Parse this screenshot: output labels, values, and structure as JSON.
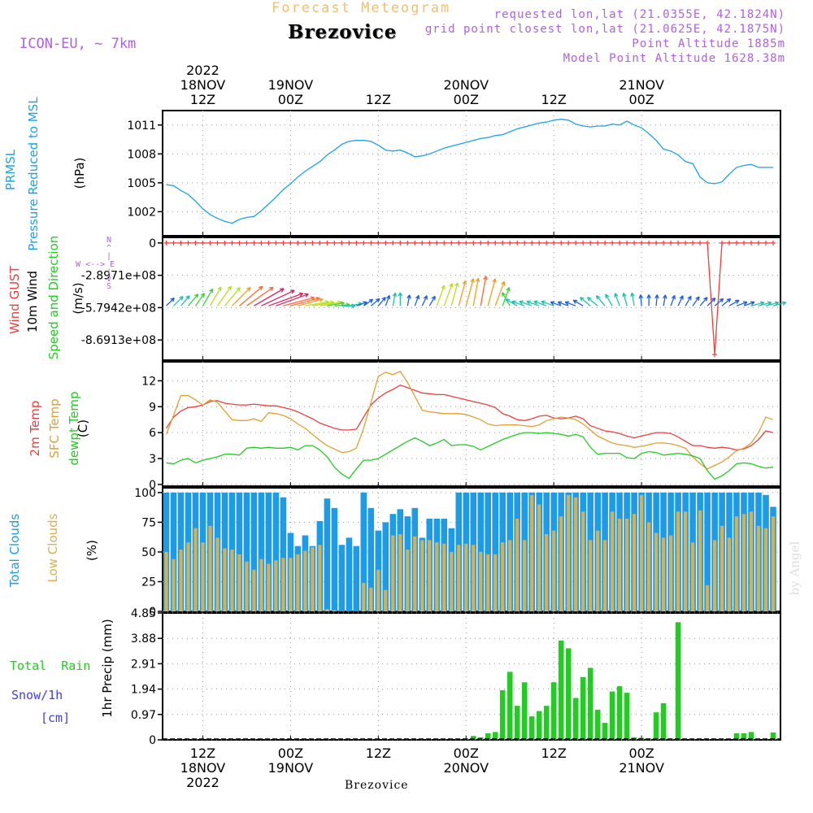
{
  "header": {
    "product": "Forecast Meteogram",
    "model": "ICON-EU, ~ 7km",
    "location": "Brezovice",
    "requested": "requested lon,lat (21.0355E, 42.1824N)",
    "grid_point": "grid point closest lon,lat (21.0625E, 42.1875N)",
    "point_altitude": "Point Altitude 1885m",
    "model_altitude": "Model Point Altitude 1628.38m",
    "credit": "by Angel",
    "footer": "Brezovice"
  },
  "time_axis": {
    "top_labels": [
      {
        "t": 12,
        "lines": [
          "2022",
          "18NOV",
          "12Z"
        ]
      },
      {
        "t": 24,
        "lines": [
          "19NOV",
          "00Z"
        ]
      },
      {
        "t": 36,
        "lines": [
          "12Z"
        ]
      },
      {
        "t": 48,
        "lines": [
          "20NOV",
          "00Z"
        ]
      },
      {
        "t": 60,
        "lines": [
          "12Z"
        ]
      },
      {
        "t": 72,
        "lines": [
          "21NOV",
          "00Z"
        ]
      }
    ],
    "bottom_labels": [
      {
        "t": 12,
        "lines": [
          "12Z",
          "18NOV",
          "2022"
        ]
      },
      {
        "t": 24,
        "lines": [
          "00Z",
          "19NOV"
        ]
      },
      {
        "t": 36,
        "lines": [
          "12Z"
        ]
      },
      {
        "t": 48,
        "lines": [
          "00Z",
          "20NOV"
        ]
      },
      {
        "t": 60,
        "lines": [
          "12Z"
        ]
      },
      {
        "t": 72,
        "lines": [
          "00Z",
          "21NOV"
        ]
      }
    ]
  },
  "colors": {
    "pressure": "#1aa3e6",
    "temp2m": "#e84040",
    "sfc": "#e0a030",
    "dew": "#22cc22",
    "cloud_total": "#1e9be6",
    "cloud_low": "#d8b050",
    "precip": "#22cc22",
    "label_purple": "#b060e0",
    "snow_blue": "#4040e0",
    "title_orange": "#f0c070"
  },
  "chart_data": [
    {
      "type": "line",
      "title": "PRMSL Pressure Reduced to MSL",
      "ylabel_lines": [
        "PRMSL",
        "Pressure Reduced to MSL",
        "(hPa)"
      ],
      "x_start_hours": 7,
      "x_step_hours": 1,
      "ylim": [
        999.5,
        1012.5
      ],
      "yticks": [
        "1002",
        "1005",
        "1008",
        "1011"
      ],
      "values": [
        1004.8,
        1004.7,
        1004.2,
        1003.8,
        1003.1,
        1002.3,
        1001.7,
        1001.3,
        1001.0,
        1000.8,
        1001.2,
        1001.4,
        1001.5,
        1002.1,
        1002.8,
        1003.5,
        1004.3,
        1004.9,
        1005.6,
        1006.2,
        1006.7,
        1007.2,
        1007.9,
        1008.4,
        1009.0,
        1009.3,
        1009.4,
        1009.4,
        1009.3,
        1008.9,
        1008.4,
        1008.3,
        1008.4,
        1008.1,
        1007.7,
        1007.8,
        1008.0,
        1008.3,
        1008.6,
        1008.8,
        1009.0,
        1009.2,
        1009.4,
        1009.6,
        1009.7,
        1009.9,
        1010.0,
        1010.3,
        1010.6,
        1010.8,
        1011.0,
        1011.2,
        1011.3,
        1011.5,
        1011.6,
        1011.5,
        1011.1,
        1010.9,
        1010.8,
        1010.9,
        1010.9,
        1011.1,
        1011.0,
        1011.4,
        1011.0,
        1010.7,
        1010.1,
        1009.4,
        1008.5,
        1008.3,
        1007.9,
        1007.2,
        1007.0,
        1005.6,
        1005.0,
        1004.9,
        1005.1,
        1005.9,
        1006.6,
        1006.8,
        1006.9,
        1006.6,
        1006.6,
        1006.6
      ]
    },
    {
      "type": "line",
      "title": "Wind GUST / 10m Wind Speed and Direction",
      "ylabel_lines": [
        "Wind GUST",
        "10m Wind",
        "Speed and Direction",
        "(m/s)"
      ],
      "compass_lines": [
        "N",
        "^",
        "|",
        "W <--> E",
        "|",
        "v",
        "S"
      ],
      "x_start_hours": 7,
      "x_step_hours": 1,
      "ylim": [
        -1050000000.0,
        50000000.0
      ],
      "yticks": [
        "0",
        "-2.8971e+08",
        "-5.7942e+08",
        "-8.6913e+08"
      ],
      "gust_values": [
        0,
        0,
        0,
        0,
        0,
        0,
        0,
        0,
        0,
        0,
        0,
        0,
        0,
        0,
        0,
        0,
        0,
        0,
        0,
        0,
        0,
        0,
        0,
        0,
        0,
        0,
        0,
        0,
        0,
        0,
        0,
        0,
        0,
        0,
        0,
        0,
        0,
        0,
        0,
        0,
        0,
        0,
        0,
        0,
        0,
        0,
        0,
        0,
        0,
        0,
        0,
        0,
        0,
        0,
        0,
        0,
        0,
        0,
        0,
        0,
        0,
        0,
        0,
        0,
        0,
        0,
        0,
        0,
        0,
        0,
        0,
        0,
        0,
        0,
        0,
        -1000000000.0,
        0,
        0,
        0,
        0,
        0,
        0,
        0,
        0
      ],
      "wind_speed": [
        3,
        4,
        4,
        5,
        5,
        7,
        8,
        9,
        9,
        10,
        12,
        13,
        14,
        15,
        15,
        14,
        13,
        12,
        10,
        9,
        8,
        8,
        6,
        5,
        4,
        4,
        3,
        3,
        3,
        3,
        3,
        4,
        4,
        3,
        3,
        3,
        3,
        8,
        9,
        9,
        10,
        11,
        11,
        12,
        11,
        10,
        7,
        5,
        4,
        4,
        4,
        4,
        4,
        4,
        3,
        3,
        3,
        3,
        4,
        4,
        4,
        4,
        4,
        4,
        4,
        3,
        3,
        3,
        3,
        3,
        3,
        3,
        3,
        3,
        3,
        3,
        3,
        3,
        3,
        3,
        4,
        4,
        4,
        4
      ],
      "wind_dir_deg": [
        225,
        225,
        220,
        220,
        215,
        210,
        210,
        215,
        220,
        225,
        230,
        235,
        240,
        245,
        250,
        250,
        255,
        255,
        255,
        260,
        260,
        260,
        260,
        265,
        270,
        260,
        250,
        235,
        230,
        220,
        200,
        190,
        180,
        190,
        200,
        205,
        210,
        200,
        200,
        195,
        195,
        195,
        190,
        190,
        195,
        200,
        200,
        150,
        120,
        110,
        110,
        110,
        110,
        110,
        110,
        110,
        110,
        120,
        130,
        130,
        140,
        150,
        160,
        165,
        170,
        175,
        180,
        185,
        190,
        200,
        205,
        210,
        215,
        220,
        225,
        230,
        230,
        240,
        250,
        250,
        255,
        255,
        255,
        255
      ]
    },
    {
      "type": "line",
      "title": "2m Temp / SFC Temp / dewpt Temp",
      "ylabel_lines": [
        "2m Temp",
        "SFC Temp",
        "dewpt Temp",
        "(C)"
      ],
      "x_start_hours": 7,
      "x_step_hours": 1,
      "ylim": [
        -0.2,
        14.2
      ],
      "yticks": [
        "0",
        "3",
        "6",
        "9",
        "12"
      ],
      "series": [
        {
          "name": "2m Temp",
          "values": [
            6.5,
            7.8,
            8.5,
            8.9,
            9.0,
            9.2,
            9.6,
            9.7,
            9.4,
            9.3,
            9.2,
            9.2,
            9.3,
            9.2,
            9.1,
            9.1,
            8.9,
            8.7,
            8.4,
            8.0,
            7.6,
            7.1,
            6.8,
            6.5,
            6.3,
            6.3,
            6.4,
            7.8,
            9.2,
            10.0,
            10.6,
            11.0,
            11.5,
            11.2,
            10.9,
            10.6,
            10.5,
            10.4,
            10.4,
            10.2,
            10.0,
            9.8,
            9.6,
            9.4,
            9.2,
            8.9,
            8.2,
            7.9,
            7.5,
            7.4,
            7.6,
            7.9,
            8.0,
            7.7,
            7.6,
            7.7,
            7.9,
            7.6,
            6.8,
            6.5,
            6.2,
            6.1,
            5.9,
            5.6,
            5.4,
            5.6,
            5.8,
            6.0,
            6.0,
            5.9,
            5.5,
            5.0,
            4.5,
            4.5,
            4.3,
            4.2,
            4.3,
            4.2,
            4.0,
            4.1,
            4.5,
            5.2,
            6.2,
            6.0
          ]
        },
        {
          "name": "SFC Temp",
          "values": [
            5.8,
            8.0,
            10.3,
            10.3,
            9.8,
            9.2,
            9.8,
            9.5,
            8.5,
            7.5,
            7.4,
            7.4,
            7.6,
            7.3,
            8.3,
            8.2,
            8.0,
            7.6,
            7.0,
            6.5,
            5.8,
            5.1,
            4.5,
            4.1,
            3.7,
            3.8,
            4.2,
            6.5,
            9.5,
            12.5,
            13.0,
            12.7,
            13.1,
            11.8,
            10.2,
            8.6,
            8.4,
            8.3,
            8.2,
            8.2,
            8.2,
            8.1,
            7.8,
            7.5,
            7.0,
            6.8,
            6.9,
            6.9,
            6.9,
            6.8,
            6.7,
            6.9,
            7.4,
            7.6,
            7.8,
            7.7,
            7.5,
            7.0,
            6.3,
            5.6,
            5.2,
            4.8,
            4.6,
            4.5,
            4.3,
            4.4,
            4.6,
            4.8,
            4.8,
            4.7,
            4.5,
            4.2,
            3.2,
            2.4,
            1.8,
            2.2,
            2.6,
            3.2,
            3.9,
            4.2,
            4.8,
            6.0,
            7.8,
            7.5
          ]
        },
        {
          "name": "dewpt Temp",
          "values": [
            2.5,
            2.4,
            2.8,
            3.0,
            2.5,
            2.8,
            3.0,
            3.2,
            3.5,
            3.5,
            3.4,
            4.2,
            4.3,
            4.2,
            4.3,
            4.2,
            4.2,
            4.3,
            4.0,
            4.5,
            4.5,
            4.0,
            3.2,
            2.0,
            1.2,
            0.7,
            1.8,
            2.8,
            2.8,
            3.0,
            3.5,
            4.0,
            4.5,
            5.0,
            5.4,
            5.0,
            4.5,
            4.8,
            5.2,
            4.5,
            4.6,
            4.6,
            4.4,
            4.0,
            4.4,
            4.8,
            5.2,
            5.5,
            5.8,
            6.0,
            6.0,
            5.9,
            6.0,
            5.9,
            5.8,
            5.6,
            5.8,
            5.5,
            4.3,
            3.5,
            3.6,
            3.6,
            3.6,
            3.1,
            3.0,
            3.6,
            3.8,
            3.7,
            3.4,
            3.5,
            3.6,
            3.5,
            3.3,
            3.0,
            1.6,
            0.6,
            1.0,
            1.6,
            2.4,
            2.5,
            2.4,
            2.1,
            1.9,
            2.0
          ]
        }
      ]
    },
    {
      "type": "bar",
      "title": "Total Clouds / Low Clouds",
      "ylabel_lines": [
        "Total Clouds",
        "Low Clouds",
        "(%)"
      ],
      "x_start_hours": 7,
      "x_step_hours": 1,
      "ylim": [
        0,
        104
      ],
      "yticks": [
        "0",
        "25",
        "50",
        "75",
        "100"
      ],
      "series": [
        {
          "name": "Total Clouds",
          "values": [
            100,
            100,
            100,
            100,
            100,
            100,
            100,
            100,
            100,
            100,
            100,
            100,
            100,
            100,
            100,
            100,
            96,
            66,
            55,
            64,
            55,
            76,
            95,
            87,
            56,
            62,
            55,
            100,
            87,
            68,
            75,
            82,
            86,
            80,
            87,
            62,
            78,
            78,
            78,
            70,
            100,
            100,
            100,
            100,
            100,
            100,
            100,
            100,
            100,
            100,
            100,
            100,
            100,
            100,
            100,
            100,
            100,
            100,
            100,
            100,
            100,
            100,
            100,
            100,
            100,
            100,
            100,
            100,
            100,
            100,
            100,
            100,
            100,
            100,
            100,
            100,
            100,
            100,
            100,
            100,
            100,
            100,
            98,
            88
          ]
        },
        {
          "name": "Low Clouds",
          "values": [
            50,
            44,
            52,
            58,
            70,
            58,
            72,
            62,
            53,
            52,
            48,
            42,
            35,
            44,
            40,
            43,
            45,
            45,
            48,
            51,
            54,
            56,
            2,
            1,
            0,
            0,
            0,
            24,
            20,
            35,
            18,
            64,
            65,
            52,
            63,
            60,
            60,
            58,
            57,
            50,
            56,
            57,
            56,
            50,
            48,
            48,
            58,
            60,
            78,
            60,
            98,
            90,
            65,
            68,
            80,
            98,
            96,
            84,
            60,
            68,
            60,
            84,
            78,
            78,
            82,
            98,
            75,
            66,
            62,
            64,
            84,
            84,
            58,
            85,
            22,
            60,
            72,
            62,
            80,
            82,
            84,
            72,
            70,
            80
          ]
        }
      ]
    },
    {
      "type": "bar",
      "title": "1hr Precip (mm)",
      "ylabel_lines": [
        "1hr Precip (mm)"
      ],
      "side_labels": [
        "Total  Rain",
        "Snow/1h",
        "[cm]"
      ],
      "x_start_hours": 7,
      "x_step_hours": 1,
      "ylim": [
        0,
        4.85
      ],
      "yticks": [
        "0",
        "0.97",
        "1.94",
        "2.91",
        "3.88",
        "4.85"
      ],
      "values": [
        0,
        0,
        0,
        0,
        0,
        0,
        0,
        0,
        0,
        0,
        0,
        0,
        0,
        0,
        0,
        0,
        0,
        0,
        0,
        0,
        0,
        0,
        0,
        0,
        0,
        0,
        0,
        0,
        0,
        0,
        0,
        0,
        0,
        0,
        0,
        0,
        0,
        0,
        0,
        0,
        0,
        0.05,
        0.15,
        0.1,
        0.25,
        0.3,
        1.9,
        2.6,
        1.3,
        2.2,
        0.9,
        1.1,
        1.3,
        2.2,
        3.8,
        3.5,
        1.6,
        2.4,
        2.75,
        1.15,
        0.65,
        1.85,
        2.05,
        1.8,
        0.1,
        0.08,
        0.05,
        1.05,
        1.4,
        0.05,
        4.5,
        0,
        0,
        0,
        0,
        0,
        0.02,
        0,
        0.25,
        0.25,
        0.3,
        0,
        0,
        0.28
      ]
    }
  ]
}
